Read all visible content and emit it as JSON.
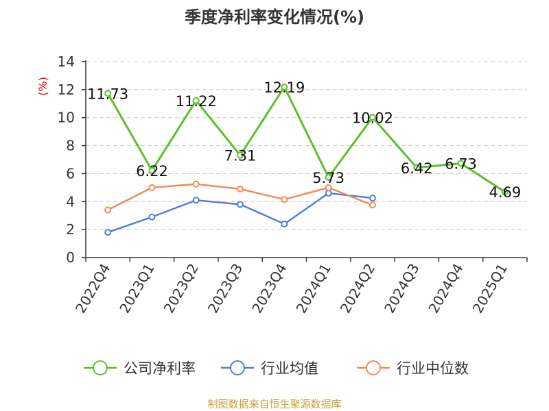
{
  "chart_data": {
    "type": "line",
    "title": "季度净利率变化情况(%)",
    "ylabel": "(%)",
    "ylim": [
      0,
      14
    ],
    "yticks": [
      0,
      2,
      4,
      6,
      8,
      10,
      12,
      14
    ],
    "grid": true,
    "legend_position": "bottom",
    "categories": [
      "2022Q4",
      "2023Q1",
      "2023Q2",
      "2023Q3",
      "2023Q4",
      "2024Q1",
      "2024Q2",
      "2024Q3",
      "2024Q4",
      "2025Q1"
    ],
    "series": [
      {
        "name": "公司净利率",
        "color": "#5cc02a",
        "values": [
          11.73,
          6.22,
          11.22,
          7.31,
          12.19,
          5.73,
          10.02,
          6.42,
          6.73,
          4.69
        ],
        "labels": [
          "11.73",
          "6.22",
          "11.22",
          "7.31",
          "12.19",
          "5.73",
          "10.02",
          "6.42",
          "6.73",
          "4.69"
        ]
      },
      {
        "name": "行业均值",
        "color": "#4f7fdc",
        "values": [
          1.8,
          2.9,
          4.1,
          3.8,
          2.4,
          4.6,
          4.25,
          null,
          null,
          null
        ]
      },
      {
        "name": "行业中位数",
        "color": "#f58a58",
        "values": [
          3.4,
          5.0,
          5.25,
          4.9,
          4.15,
          5.0,
          3.75,
          null,
          null,
          null
        ]
      }
    ]
  },
  "footer": {
    "source": "制图数据来自恒生聚源数据库"
  }
}
